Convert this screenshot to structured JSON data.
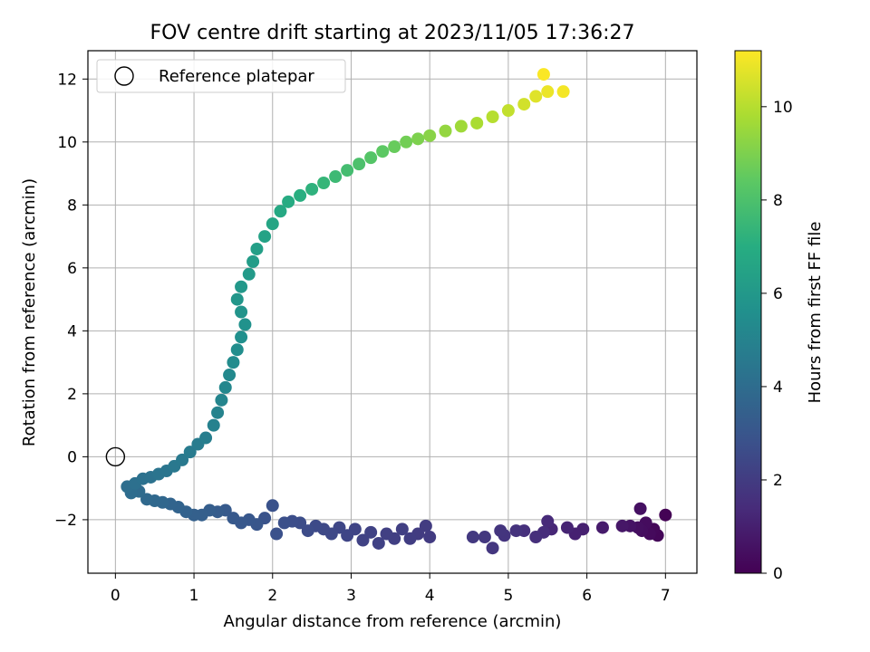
{
  "chart_data": {
    "type": "scatter",
    "title": "FOV centre drift starting at 2023/11/05 17:36:27",
    "xlabel": "Angular distance from reference (arcmin)",
    "ylabel": "Rotation from reference (arcmin)",
    "xlim": [
      -0.35,
      7.4
    ],
    "ylim": [
      -3.7,
      12.9
    ],
    "xticks": [
      0,
      1,
      2,
      3,
      4,
      5,
      6,
      7
    ],
    "xtick_labels": [
      "0",
      "1",
      "2",
      "3",
      "4",
      "5",
      "6",
      "7"
    ],
    "yticks": [
      -2,
      0,
      2,
      4,
      6,
      8,
      10,
      12
    ],
    "ytick_labels": [
      "−2",
      "0",
      "2",
      "4",
      "6",
      "8",
      "10",
      "12"
    ],
    "grid": true,
    "legend": {
      "placement": "top-left",
      "label": "Reference platepar"
    },
    "reference_point": [
      0,
      0
    ],
    "colorbar": {
      "label": "Hours from first FF file",
      "colormap": "viridis",
      "range": [
        0,
        11.2
      ],
      "ticks": [
        0,
        2,
        4,
        6,
        8,
        10
      ],
      "tick_labels": [
        "0",
        "2",
        "4",
        "6",
        "8",
        "10"
      ]
    },
    "points": [
      [
        7.0,
        -1.85,
        0.05
      ],
      [
        6.9,
        -2.5,
        0.15
      ],
      [
        6.85,
        -2.3,
        0.2
      ],
      [
        6.8,
        -2.45,
        0.3
      ],
      [
        6.75,
        -2.1,
        0.35
      ],
      [
        6.7,
        -2.35,
        0.4
      ],
      [
        6.65,
        -2.25,
        0.45
      ],
      [
        6.68,
        -1.65,
        0.5
      ],
      [
        6.55,
        -2.2,
        0.6
      ],
      [
        6.45,
        -2.2,
        0.7
      ],
      [
        6.2,
        -2.25,
        0.85
      ],
      [
        5.95,
        -2.3,
        1.0
      ],
      [
        5.85,
        -2.45,
        1.05
      ],
      [
        5.75,
        -2.25,
        1.15
      ],
      [
        5.55,
        -2.3,
        1.25
      ],
      [
        5.5,
        -2.05,
        1.35
      ],
      [
        5.45,
        -2.4,
        1.45
      ],
      [
        5.35,
        -2.55,
        1.5
      ],
      [
        5.2,
        -2.35,
        1.55
      ],
      [
        5.1,
        -2.35,
        1.65
      ],
      [
        4.95,
        -2.5,
        1.7
      ],
      [
        4.9,
        -2.35,
        1.75
      ],
      [
        4.8,
        -2.9,
        1.8
      ],
      [
        4.7,
        -2.55,
        1.85
      ],
      [
        4.55,
        -2.55,
        1.9
      ],
      [
        4.0,
        -2.55,
        1.95
      ],
      [
        3.95,
        -2.2,
        2.0
      ],
      [
        3.85,
        -2.45,
        2.0
      ],
      [
        3.75,
        -2.6,
        2.05
      ],
      [
        3.65,
        -2.3,
        2.1
      ],
      [
        3.55,
        -2.6,
        2.1
      ],
      [
        3.45,
        -2.45,
        2.15
      ],
      [
        3.35,
        -2.75,
        2.2
      ],
      [
        3.25,
        -2.4,
        2.25
      ],
      [
        3.15,
        -2.65,
        2.25
      ],
      [
        3.05,
        -2.3,
        2.3
      ],
      [
        2.95,
        -2.5,
        2.35
      ],
      [
        2.85,
        -2.25,
        2.4
      ],
      [
        2.75,
        -2.45,
        2.45
      ],
      [
        2.65,
        -2.3,
        2.5
      ],
      [
        2.55,
        -2.2,
        2.55
      ],
      [
        2.45,
        -2.35,
        2.6
      ],
      [
        2.35,
        -2.1,
        2.65
      ],
      [
        2.25,
        -2.05,
        2.7
      ],
      [
        2.15,
        -2.1,
        2.75
      ],
      [
        2.05,
        -2.45,
        2.8
      ],
      [
        2.0,
        -1.55,
        2.85
      ],
      [
        1.9,
        -1.95,
        2.9
      ],
      [
        1.8,
        -2.15,
        3.0
      ],
      [
        1.7,
        -2.0,
        3.05
      ],
      [
        1.6,
        -2.1,
        3.1
      ],
      [
        1.5,
        -1.95,
        3.15
      ],
      [
        1.4,
        -1.7,
        3.2
      ],
      [
        1.3,
        -1.75,
        3.3
      ],
      [
        1.2,
        -1.7,
        3.35
      ],
      [
        1.1,
        -1.85,
        3.4
      ],
      [
        1.0,
        -1.85,
        3.45
      ],
      [
        0.9,
        -1.75,
        3.55
      ],
      [
        0.8,
        -1.6,
        3.6
      ],
      [
        0.7,
        -1.5,
        3.65
      ],
      [
        0.6,
        -1.45,
        3.75
      ],
      [
        0.5,
        -1.4,
        3.8
      ],
      [
        0.4,
        -1.35,
        3.85
      ],
      [
        0.3,
        -1.1,
        3.95
      ],
      [
        0.2,
        -1.15,
        4.0
      ],
      [
        0.15,
        -0.95,
        4.05
      ],
      [
        0.25,
        -0.85,
        4.15
      ],
      [
        0.35,
        -0.7,
        4.2
      ],
      [
        0.45,
        -0.65,
        4.25
      ],
      [
        0.55,
        -0.55,
        4.35
      ],
      [
        0.65,
        -0.45,
        4.4
      ],
      [
        0.75,
        -0.3,
        4.5
      ],
      [
        0.85,
        -0.1,
        4.55
      ],
      [
        0.95,
        0.15,
        4.65
      ],
      [
        1.05,
        0.4,
        4.7
      ],
      [
        1.15,
        0.6,
        4.8
      ],
      [
        1.25,
        1.0,
        4.9
      ],
      [
        1.3,
        1.4,
        5.0
      ],
      [
        1.35,
        1.8,
        5.1
      ],
      [
        1.4,
        2.2,
        5.2
      ],
      [
        1.45,
        2.6,
        5.3
      ],
      [
        1.5,
        3.0,
        5.4
      ],
      [
        1.55,
        3.4,
        5.5
      ],
      [
        1.6,
        3.8,
        5.6
      ],
      [
        1.65,
        4.2,
        5.7
      ],
      [
        1.6,
        4.6,
        5.8
      ],
      [
        1.55,
        5.0,
        5.9
      ],
      [
        1.6,
        5.4,
        6.0
      ],
      [
        1.7,
        5.8,
        6.1
      ],
      [
        1.75,
        6.2,
        6.2
      ],
      [
        1.8,
        6.6,
        6.3
      ],
      [
        1.9,
        7.0,
        6.45
      ],
      [
        2.0,
        7.4,
        6.6
      ],
      [
        2.1,
        7.8,
        6.75
      ],
      [
        2.2,
        8.1,
        6.9
      ],
      [
        2.35,
        8.3,
        7.05
      ],
      [
        2.5,
        8.5,
        7.2
      ],
      [
        2.65,
        8.7,
        7.4
      ],
      [
        2.8,
        8.9,
        7.6
      ],
      [
        2.95,
        9.1,
        7.8
      ],
      [
        3.1,
        9.3,
        8.0
      ],
      [
        3.25,
        9.5,
        8.2
      ],
      [
        3.4,
        9.7,
        8.4
      ],
      [
        3.55,
        9.85,
        8.6
      ],
      [
        3.7,
        10.0,
        8.8
      ],
      [
        3.85,
        10.1,
        9.0
      ],
      [
        4.0,
        10.2,
        9.2
      ],
      [
        4.2,
        10.35,
        9.4
      ],
      [
        4.4,
        10.5,
        9.6
      ],
      [
        4.6,
        10.6,
        9.8
      ],
      [
        4.8,
        10.8,
        10.0
      ],
      [
        5.0,
        11.0,
        10.2
      ],
      [
        5.2,
        11.2,
        10.45
      ],
      [
        5.35,
        11.45,
        10.7
      ],
      [
        5.5,
        11.6,
        10.9
      ],
      [
        5.7,
        11.6,
        11.05
      ],
      [
        5.45,
        12.15,
        11.15
      ]
    ]
  }
}
